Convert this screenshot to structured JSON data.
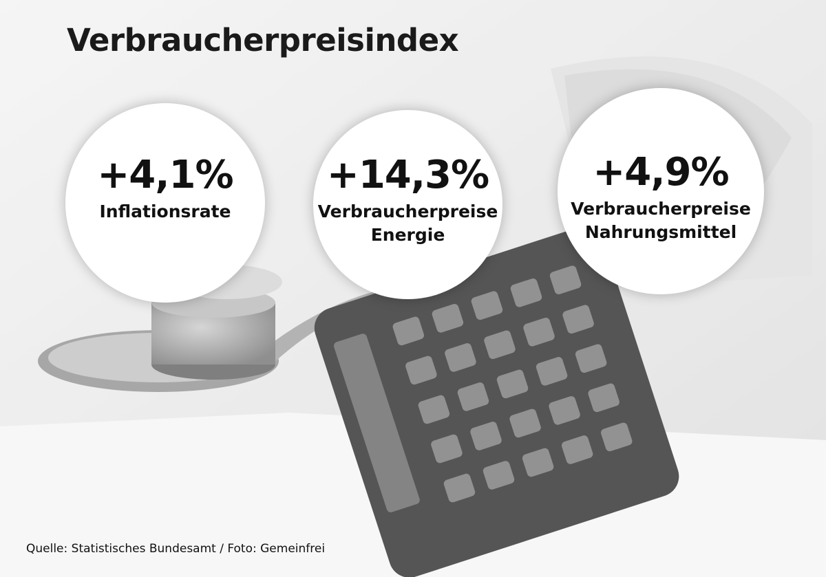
{
  "header": {
    "title": "Verbraucherpreisindex"
  },
  "stats": [
    {
      "value": "+4,1%",
      "label_lines": [
        "Inflationsrate"
      ]
    },
    {
      "value": "+14,3%",
      "label_lines": [
        "Verbraucherpreise",
        "Energie"
      ]
    },
    {
      "value": "+4,9%",
      "label_lines": [
        "Verbraucherpreise",
        "Nahrungsmittel"
      ]
    }
  ],
  "footer": {
    "source": "Quelle: Statistisches Bundesamt / Foto: Gemeinfrei"
  }
}
